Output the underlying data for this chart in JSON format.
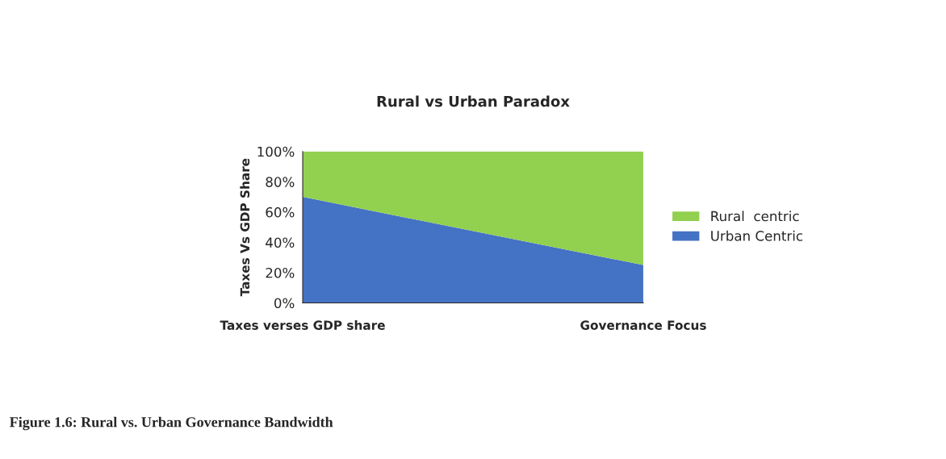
{
  "chart_data": {
    "type": "area",
    "stacked": true,
    "title": "Rural vs Urban Paradox",
    "ylabel": "Taxes Vs GDP Share",
    "categories": [
      "Taxes verses GDP share",
      "Governance Focus"
    ],
    "series": [
      {
        "name": "Urban Centric",
        "color": "#4472c4",
        "values": [
          70,
          25
        ]
      },
      {
        "name": "Rural  centric",
        "color": "#92d050",
        "values": [
          30,
          75
        ]
      }
    ],
    "ylim": [
      0,
      100
    ],
    "yticks": [
      {
        "value": 0,
        "label": "0%"
      },
      {
        "value": 20,
        "label": "20%"
      },
      {
        "value": 40,
        "label": "40%"
      },
      {
        "value": 60,
        "label": "60%"
      },
      {
        "value": 80,
        "label": "80%"
      },
      {
        "value": 100,
        "label": "100%"
      }
    ],
    "grid": false,
    "legend": "right",
    "annotations": [
      "Figure 1.6: Rural vs. Urban Governance Bandwidth"
    ]
  }
}
